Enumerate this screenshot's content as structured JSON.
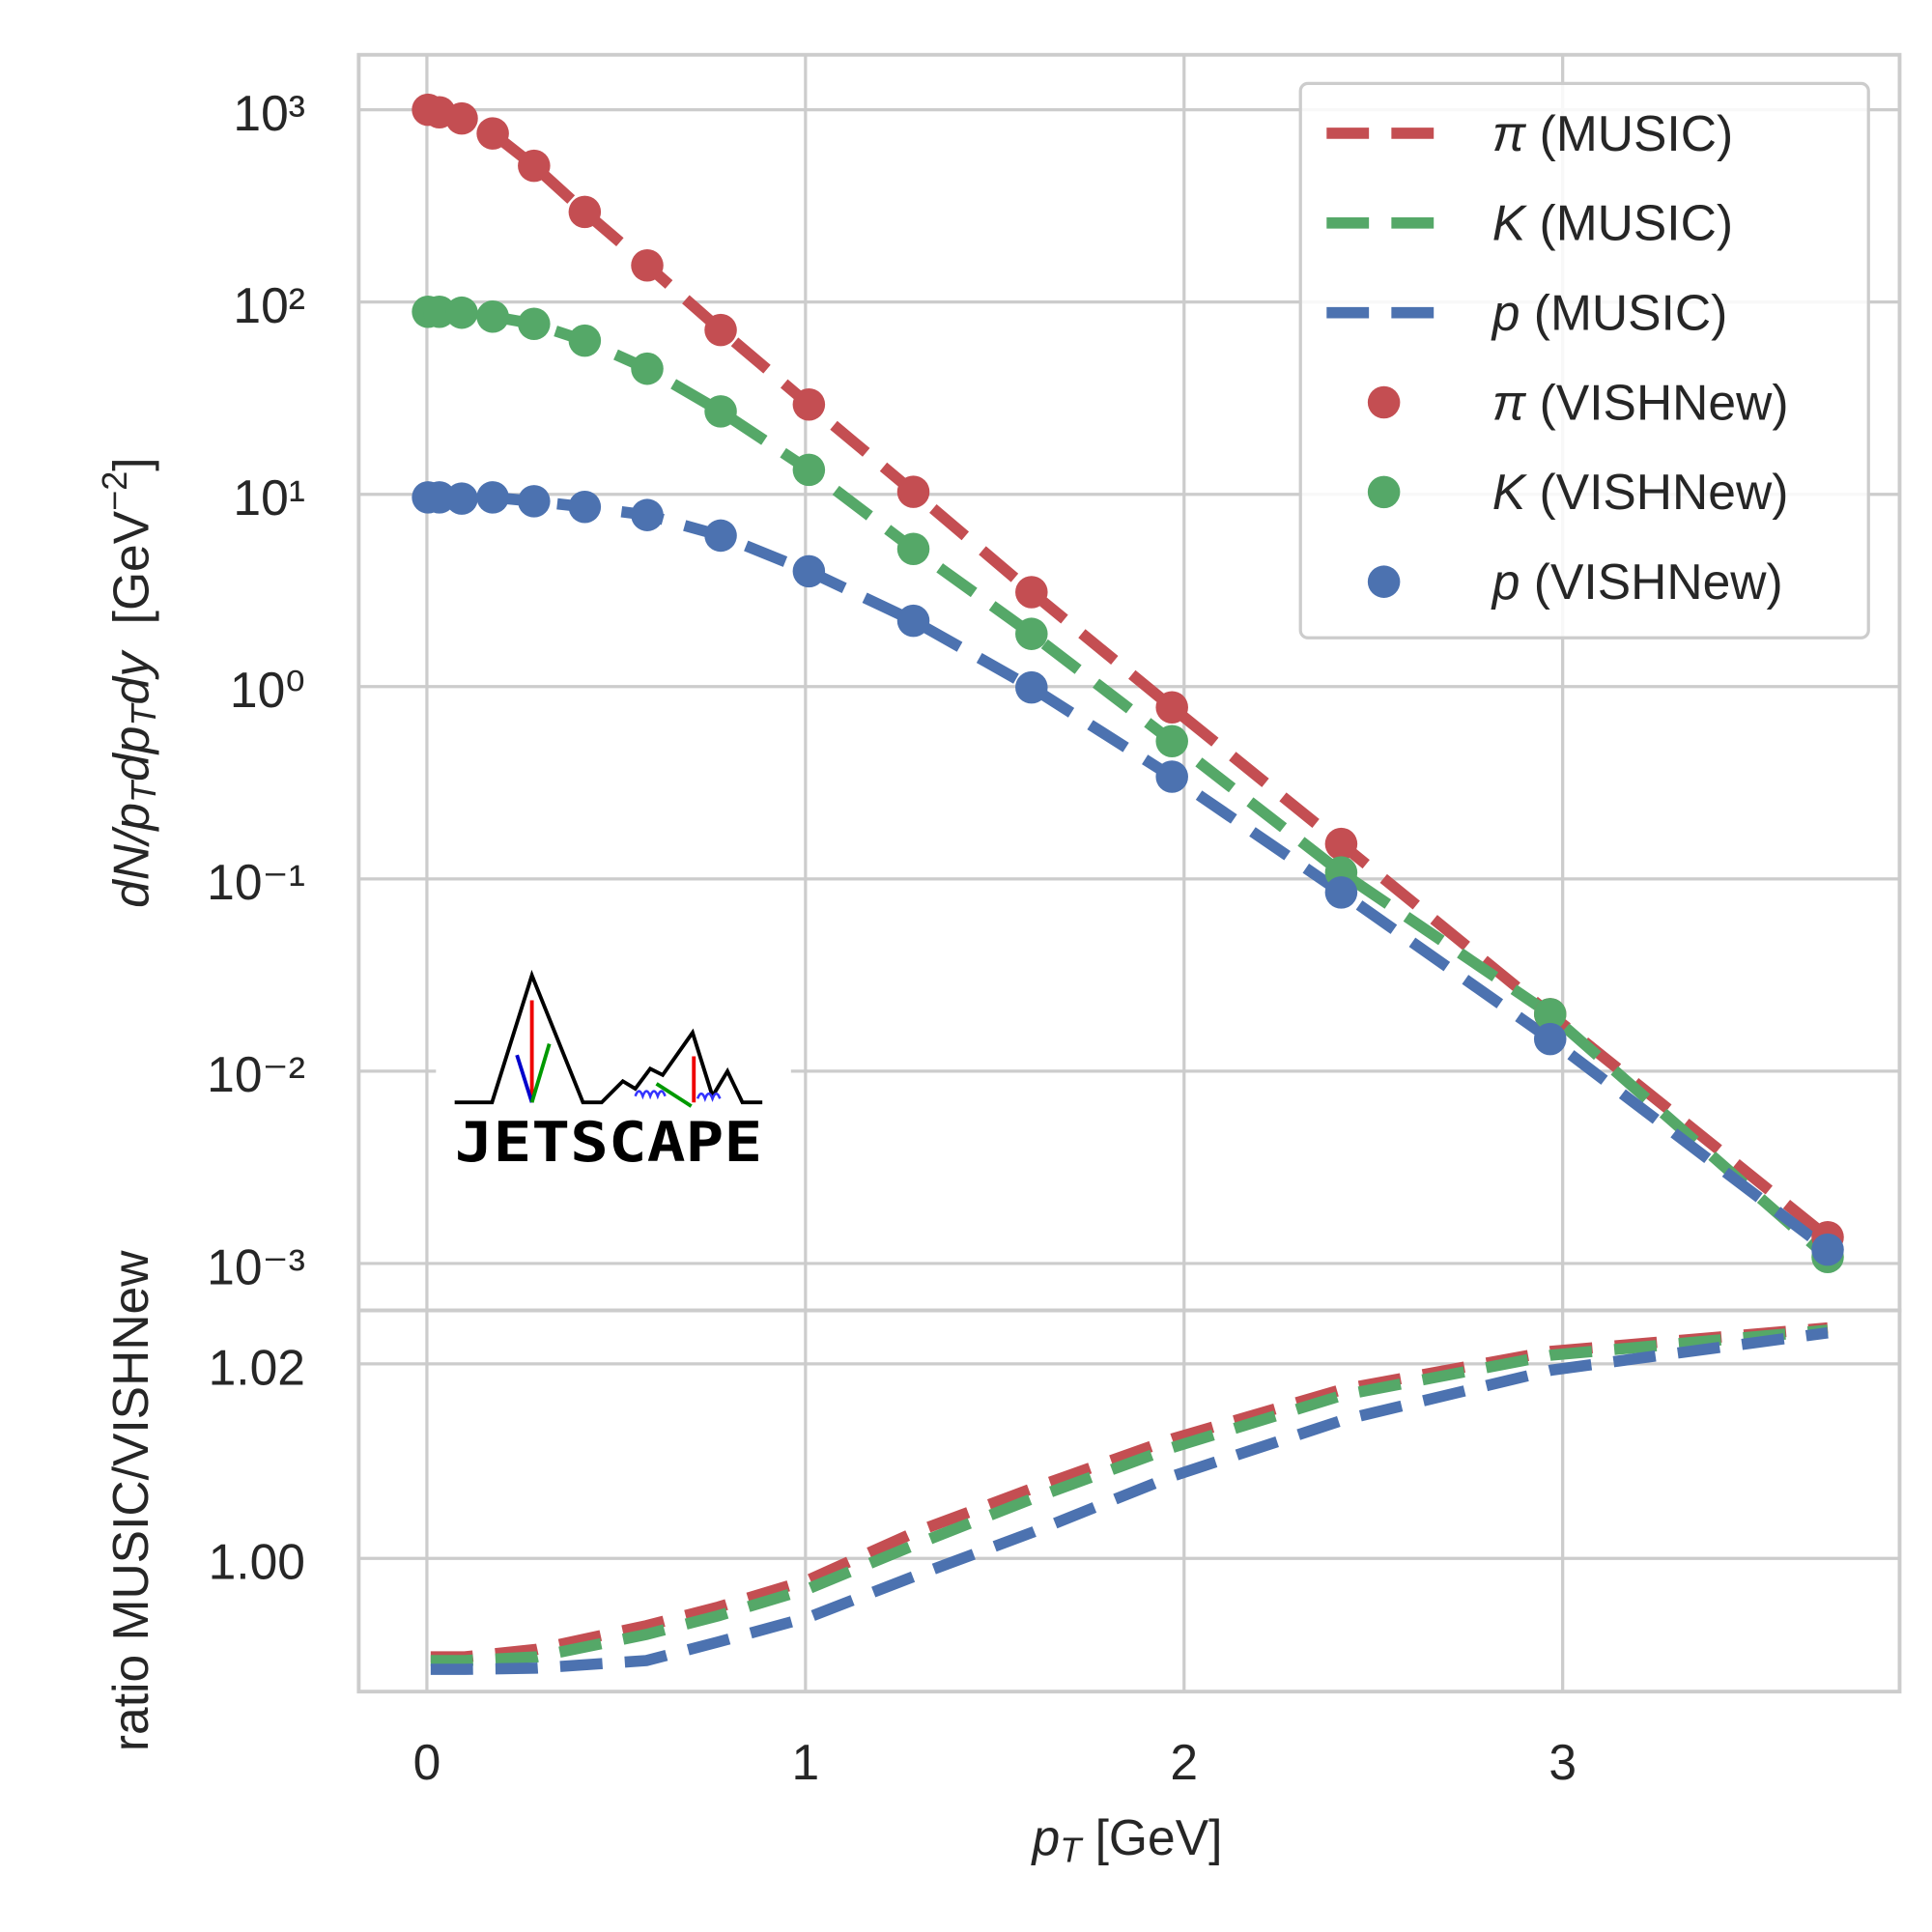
{
  "chart_data": [
    {
      "type": "line",
      "yscale": "log",
      "grid": true,
      "legend": "upper right",
      "ylabel": [
        "dN/p",
        "T",
        "dp",
        "T",
        "dy",
        "  [GeV",
        "−2",
        "]"
      ],
      "logo_text": "JETSCAPE",
      "xlim": [
        -0.18,
        3.89
      ],
      "xticks": [
        0,
        1,
        2,
        3
      ],
      "ylim": [
        0.00057,
        1930
      ],
      "yticks": [
        {
          "value": 1000,
          "label": "10³"
        },
        {
          "value": 100,
          "label": "10²"
        },
        {
          "value": 10,
          "label": "10¹"
        },
        {
          "value": 1,
          "label": "10⁰"
        },
        {
          "value": 0.1,
          "label": "10⁻¹"
        },
        {
          "value": 0.01,
          "label": "10⁻²"
        },
        {
          "value": 0.001,
          "label": "10⁻³"
        }
      ],
      "x": [
        0.003,
        0.033,
        0.092,
        0.174,
        0.283,
        0.417,
        0.582,
        0.776,
        1.009,
        1.285,
        1.597,
        1.968,
        2.415,
        2.967,
        3.7
      ],
      "series": [
        {
          "name": "π (MUSIC)",
          "color": "#c44e52",
          "style": "dashed",
          "values": [
            1000,
            970,
            901,
            753,
            511,
            294,
            155,
            71.5,
            29.3,
            10.3,
            3.1,
            0.78,
            0.152,
            0.0198,
            0.00137
          ]
        },
        {
          "name": "K (MUSIC)",
          "color": "#55a868",
          "style": "dashed",
          "values": [
            89,
            89,
            88,
            84,
            77,
            63,
            45,
            27,
            13.4,
            5.2,
            1.88,
            0.52,
            0.108,
            0.0198,
            0.00108
          ]
        },
        {
          "name": "p (MUSIC)",
          "color": "#4c72b0",
          "style": "dashed",
          "values": [
            9.64,
            9.64,
            9.5,
            9.64,
            9.2,
            8.6,
            7.8,
            6.1,
            3.98,
            2.2,
            0.99,
            0.34,
            0.085,
            0.0147,
            0.00118
          ]
        },
        {
          "name": "π (VISHNew)",
          "color": "#c44e52",
          "style": "marker",
          "values": [
            1000,
            970,
            901,
            753,
            511,
            294,
            155,
            71.5,
            29.3,
            10.3,
            3.1,
            0.78,
            0.152,
            0.0198,
            0.00137
          ]
        },
        {
          "name": "K (VISHNew)",
          "color": "#55a868",
          "style": "marker",
          "values": [
            89,
            89,
            88,
            84,
            77,
            63,
            45,
            27,
            13.4,
            5.2,
            1.88,
            0.52,
            0.108,
            0.0198,
            0.00108
          ]
        },
        {
          "name": "p (VISHNew)",
          "color": "#4c72b0",
          "style": "marker",
          "values": [
            9.64,
            9.64,
            9.5,
            9.64,
            9.2,
            8.6,
            7.8,
            6.1,
            3.98,
            2.2,
            0.99,
            0.34,
            0.085,
            0.0147,
            0.00118
          ]
        }
      ]
    },
    {
      "type": "line",
      "grid": true,
      "ylabel": "ratio MUSIC/VISHNew",
      "xlabel": [
        "p",
        "T",
        " [GeV]"
      ],
      "xlim": [
        -0.18,
        3.89
      ],
      "xticks": [
        0,
        1,
        2,
        3
      ],
      "ylim": [
        0.9863,
        1.0255
      ],
      "yticks": [
        {
          "value": 1.0,
          "label": "1.00"
        },
        {
          "value": 1.02,
          "label": "1.02"
        }
      ],
      "x": [
        0.01,
        0.1,
        0.29,
        0.58,
        0.77,
        1.01,
        1.29,
        1.6,
        1.97,
        2.42,
        2.97,
        3.7
      ],
      "series": [
        {
          "color": "#c44e52",
          "style": "dashed",
          "values": [
            0.98987,
            0.98987,
            0.99064,
            0.99308,
            0.995,
            0.99782,
            1.0027,
            1.0072,
            1.0123,
            1.0174,
            1.0213,
            1.0237
          ]
        },
        {
          "color": "#55a868",
          "style": "dashed",
          "values": [
            0.98949,
            0.98949,
            0.98987,
            0.99218,
            0.9941,
            0.99692,
            1.00141,
            1.00615,
            1.01141,
            1.01679,
            1.0209,
            1.02346
          ]
        },
        {
          "color": "#4c72b0",
          "style": "dashed",
          "values": [
            0.98859,
            0.98859,
            0.98872,
            0.98949,
            0.99141,
            0.99397,
            0.9982,
            1.00269,
            1.00846,
            1.01423,
            1.01936,
            1.0232
          ]
        }
      ]
    }
  ]
}
